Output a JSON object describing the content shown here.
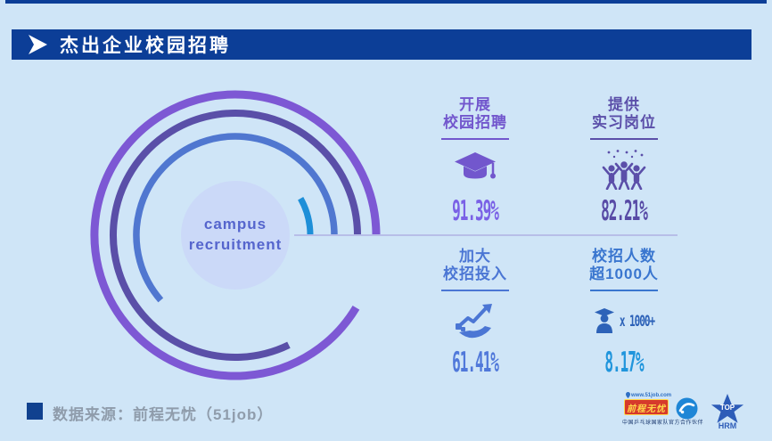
{
  "page": {
    "background": "#cfe5f7",
    "accent_navy": "#0c3e97"
  },
  "header": {
    "title": "杰出企业校园招聘"
  },
  "chart": {
    "center_line1": "campus",
    "center_line2": "recruitment"
  },
  "chart_data": {
    "type": "pie",
    "variant": "concentric-rings",
    "title": "campus recruitment",
    "unit": "%",
    "legend_position": "right",
    "center": {
      "x": 264,
      "y": 264
    },
    "start_angle_deg": 0,
    "direction": "counterclockwise",
    "series": [
      {
        "name": "开展校园招聘",
        "value": 91.39,
        "color": "#7d58d4",
        "radius": 158,
        "stroke_width": 9
      },
      {
        "name": "提供实习岗位",
        "value": 82.21,
        "color": "#5a4fa8",
        "radius": 137,
        "stroke_width": 8
      },
      {
        "name": "加大校招投入",
        "value": 61.41,
        "color": "#5077d0",
        "radius": 111,
        "stroke_width": 7.5
      },
      {
        "name": "校招人数超1000人",
        "value": 8.17,
        "color": "#1e8fd8",
        "radius": 84,
        "stroke_width": 7
      }
    ]
  },
  "stats": [
    {
      "label1": "开展",
      "label2": "校园招聘",
      "value": "91.39%",
      "label_color": "#7257cd",
      "value_color": "#7a61e6",
      "icon_color": "#7257cd",
      "icon": "graduation-cap"
    },
    {
      "label1": "提供",
      "label2": "实习岗位",
      "value": "82.21%",
      "label_color": "#5b4fa9",
      "value_color": "#584ba6",
      "icon_color": "#5b4fa9",
      "icon": "celebrating-people"
    },
    {
      "label1": "加大",
      "label2": "校招投入",
      "value": "61.41%",
      "label_color": "#4b76d4",
      "value_color": "#5078da",
      "icon_color": "#4b76d4",
      "icon": "hand-growth-arrow"
    },
    {
      "label1": "校招人数",
      "label2": "超1000人",
      "value": "8.17%",
      "icon_text": "x 1000+",
      "label_color": "#3a76cf",
      "value_color": "#2095dc",
      "icon_color": "#2d62b8",
      "icon": "graduate-count"
    }
  ],
  "footer": {
    "source_label": "数据来源：前程无忧（51job）",
    "logo_51job": {
      "site": "www.51job.com",
      "name": "前程无忧",
      "partner_text": "中国乒乓球国家队官方合作伙伴"
    },
    "tophrm": {
      "line1": "TOP",
      "line2": "HRM"
    }
  }
}
